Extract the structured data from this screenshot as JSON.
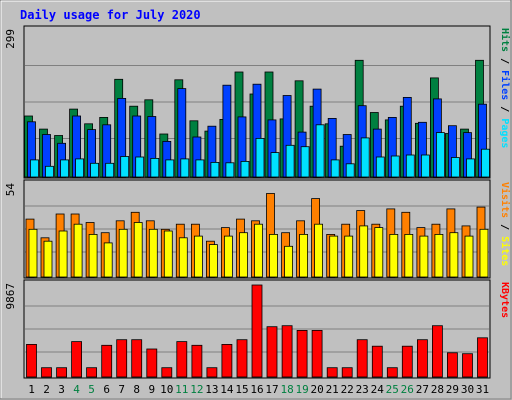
{
  "chart_data": {
    "type": "bar",
    "title": "Daily usage for July 2020",
    "categories": [
      "1",
      "2",
      "3",
      "4",
      "5",
      "6",
      "7",
      "8",
      "9",
      "10",
      "11",
      "12",
      "13",
      "14",
      "15",
      "16",
      "17",
      "18",
      "19",
      "20",
      "21",
      "22",
      "23",
      "24",
      "25",
      "26",
      "27",
      "28",
      "29",
      "30",
      "31"
    ],
    "weekend_days": [
      "4",
      "5",
      "11",
      "12",
      "18",
      "19",
      "25",
      "26"
    ],
    "panels": [
      {
        "name": "hits-files-pages",
        "max_label": "299",
        "ylim": [
          0,
          299
        ],
        "legend": [
          "Pages",
          "Files",
          "Hits"
        ],
        "series": [
          {
            "name": "Hits",
            "color": "#008040",
            "values": [
              125,
              98,
              85,
              139,
              109,
              122,
              200,
              145,
              158,
              88,
              199,
              115,
              94,
              118,
              215,
              170,
              215,
              119,
              197,
              145,
              109,
              63,
              239,
              132,
              117,
              145,
              110,
              203,
              89,
              98,
              239
            ]
          },
          {
            "name": "Files",
            "color": "#0040ff",
            "values": [
              113,
              87,
              69,
              125,
              97,
              107,
              161,
              125,
              124,
              73,
              181,
              82,
              104,
              188,
              123,
              190,
              117,
              167,
              92,
              180,
              120,
              87,
              146,
              98,
              122,
              163,
              112,
              160,
              105,
              91,
              149
            ]
          },
          {
            "name": "Pages",
            "color": "#00e0ff",
            "values": [
              35,
              22,
              35,
              37,
              28,
              28,
              42,
              41,
              38,
              35,
              37,
              35,
              30,
              29,
              32,
              79,
              50,
              65,
              62,
              107,
              35,
              27,
              80,
              41,
              43,
              45,
              45,
              91,
              40,
              37,
              57
            ]
          }
        ]
      },
      {
        "name": "visits-sites",
        "max_label": "54",
        "ylim": [
          0,
          54
        ],
        "legend": [
          "Sites",
          "Visits"
        ],
        "series": [
          {
            "name": "Visits",
            "color": "#ff8000",
            "values": [
              34,
              23,
              37,
              37,
              32,
              26,
              33,
              38,
              33,
              28,
              31,
              31,
              21,
              29,
              34,
              33,
              49,
              26,
              33,
              46,
              25,
              31,
              39,
              31,
              40,
              38,
              29,
              31,
              40,
              30,
              41
            ]
          },
          {
            "name": "Sites",
            "color": "#ffff00",
            "values": [
              28,
              21,
              27,
              31,
              25,
              20,
              28,
              32,
              28,
              27,
              23,
              24,
              19,
              24,
              26,
              31,
              25,
              18,
              25,
              31,
              24,
              24,
              30,
              29,
              25,
              25,
              24,
              25,
              26,
              24,
              28
            ]
          }
        ]
      },
      {
        "name": "kbytes",
        "max_label": "9867",
        "ylim": [
          0,
          9867
        ],
        "legend": [
          "KBytes"
        ],
        "series": [
          {
            "name": "KBytes",
            "color": "#ff0000",
            "values": [
              3500,
              1000,
              1000,
              3800,
              1000,
              3400,
              4000,
              4000,
              3000,
              1000,
              3800,
              3400,
              1000,
              3500,
              4000,
              9867,
              5400,
              5500,
              5000,
              5000,
              1000,
              1000,
              4000,
              3300,
              1000,
              3300,
              4000,
              5500,
              2600,
              2500,
              4200
            ]
          }
        ]
      }
    ]
  },
  "colors": {
    "background": "#c0c0c0",
    "plot_area": "#c0c0c0",
    "title": "#0000ff",
    "weekday_label": "#000000",
    "weekend_label": "#008040",
    "grid": "#808080"
  }
}
